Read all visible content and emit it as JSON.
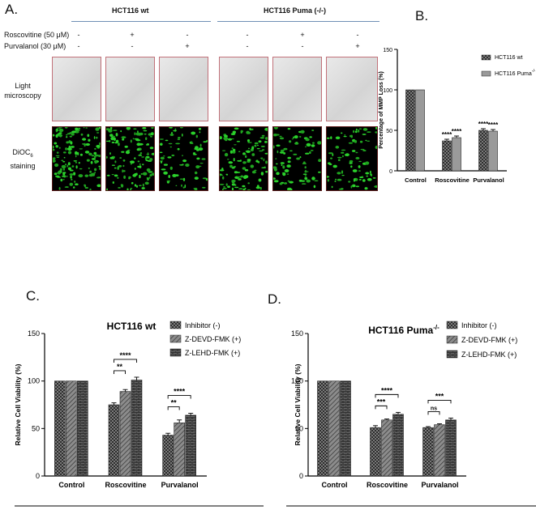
{
  "panels": {
    "A": {
      "letter": "A.",
      "groups": [
        "HCT116 wt",
        "HCT116 Puma (-/-)"
      ],
      "treatments": [
        {
          "label": "Roscovitine (50 μM)",
          "marks": [
            "-",
            "+",
            "-",
            "-",
            "+",
            "-"
          ]
        },
        {
          "label": "Purvalanol (30 μM)",
          "marks": [
            "-",
            "-",
            "+",
            "-",
            "-",
            "+"
          ]
        }
      ],
      "rows": {
        "light": [
          "Light",
          "microscopy"
        ],
        "dioc": [
          "DiOC",
          "6",
          "staining"
        ]
      }
    },
    "B": {
      "letter": "B."
    },
    "C": {
      "letter": "C."
    },
    "D": {
      "letter": "D."
    }
  },
  "colors": {
    "dark_bar": "#3a3a3a",
    "light_bar": "#9a9a9a",
    "green": "#2bd12b",
    "red_frame": "#c2727a",
    "rule_blue": "#6f8fb5"
  },
  "chart_data": [
    {
      "id": "B",
      "type": "bar",
      "title": "",
      "xlabel": "",
      "ylabel": "Percentage of MMP Loss (%)",
      "ylim": [
        0,
        150
      ],
      "yticks": [
        0,
        50,
        100,
        150
      ],
      "categories": [
        "Control",
        "Roscovitine",
        "Purvalanol"
      ],
      "series": [
        {
          "name": "HCT116 wt",
          "values": [
            100,
            37,
            50
          ],
          "errors": [
            0,
            2,
            2
          ],
          "sig": [
            "",
            "****",
            "****"
          ]
        },
        {
          "name": "HCT116 Puma",
          "name_sup": "-/-",
          "values": [
            100,
            41,
            49
          ],
          "errors": [
            0,
            2,
            2
          ],
          "sig": [
            "",
            "****",
            "****"
          ]
        }
      ],
      "legend": "right"
    },
    {
      "id": "C",
      "type": "bar",
      "title": "HCT116 wt",
      "title_sup": "",
      "xlabel": "",
      "ylabel": "Relative Cell Viability (%)",
      "ylim": [
        0,
        150
      ],
      "yticks": [
        0,
        50,
        100,
        150
      ],
      "categories": [
        "Control",
        "Roscovitine",
        "Purvalanol"
      ],
      "series": [
        {
          "name": "Inhibitor (-)",
          "values": [
            100,
            75,
            43
          ],
          "errors": [
            0,
            2,
            2
          ]
        },
        {
          "name": "Z-DEVD-FMK (+)",
          "values": [
            100,
            89,
            56
          ],
          "errors": [
            0,
            2,
            3
          ]
        },
        {
          "name": "Z-LEHD-FMK (+)",
          "values": [
            100,
            101,
            64
          ],
          "errors": [
            0,
            3,
            2
          ]
        }
      ],
      "brackets": [
        {
          "cat": 1,
          "from": 0,
          "to": 1,
          "label": "**"
        },
        {
          "cat": 1,
          "from": 0,
          "to": 2,
          "label": "****"
        },
        {
          "cat": 2,
          "from": 0,
          "to": 1,
          "label": "**"
        },
        {
          "cat": 2,
          "from": 0,
          "to": 2,
          "label": "****"
        }
      ],
      "legend": "right"
    },
    {
      "id": "D",
      "type": "bar",
      "title": "HCT116 Puma",
      "title_sup": "-/-",
      "xlabel": "",
      "ylabel": "Relative Cell Viability (%)",
      "ylim": [
        0,
        150
      ],
      "yticks": [
        0,
        50,
        100,
        150
      ],
      "categories": [
        "Control",
        "Roscovitine",
        "Purvalanol"
      ],
      "series": [
        {
          "name": "Inhibitor (-)",
          "values": [
            100,
            51,
            51
          ],
          "errors": [
            0,
            2,
            1
          ]
        },
        {
          "name": "Z-DEVD-FMK (+)",
          "values": [
            100,
            59,
            54
          ],
          "errors": [
            0,
            1,
            1
          ]
        },
        {
          "name": "Z-LEHD-FMK (+)",
          "values": [
            100,
            65,
            59
          ],
          "errors": [
            0,
            2,
            2
          ]
        }
      ],
      "brackets": [
        {
          "cat": 1,
          "from": 0,
          "to": 1,
          "label": "***"
        },
        {
          "cat": 1,
          "from": 0,
          "to": 2,
          "label": "****"
        },
        {
          "cat": 2,
          "from": 0,
          "to": 1,
          "label": "ns"
        },
        {
          "cat": 2,
          "from": 0,
          "to": 2,
          "label": "***"
        }
      ],
      "legend": "right"
    }
  ]
}
